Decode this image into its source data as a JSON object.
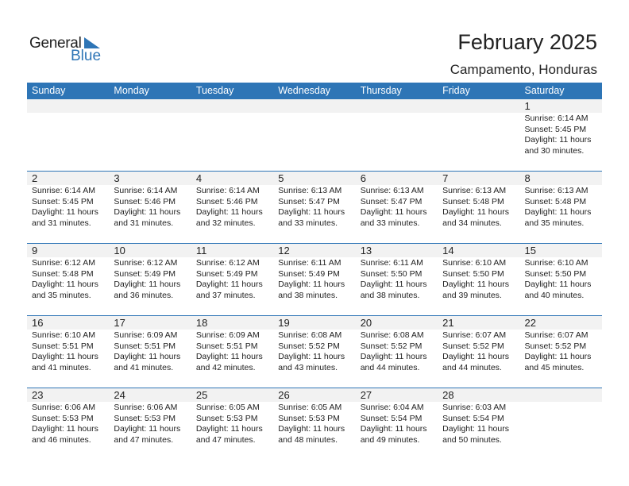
{
  "logo": {
    "line1": "General",
    "line2": "Blue"
  },
  "title": "February 2025",
  "location": "Campamento, Honduras",
  "colors": {
    "accent": "#2e75b6",
    "date_row": "#f2f2f2"
  },
  "weekdays": [
    "Sunday",
    "Monday",
    "Tuesday",
    "Wednesday",
    "Thursday",
    "Friday",
    "Saturday"
  ],
  "weeks": [
    [
      null,
      null,
      null,
      null,
      null,
      null,
      {
        "d": "1",
        "sr": "Sunrise: 6:14 AM",
        "ss": "Sunset: 5:45 PM",
        "dl": "Daylight: 11 hours",
        "m": "and 30 minutes."
      }
    ],
    [
      {
        "d": "2",
        "sr": "Sunrise: 6:14 AM",
        "ss": "Sunset: 5:45 PM",
        "dl": "Daylight: 11 hours",
        "m": "and 31 minutes."
      },
      {
        "d": "3",
        "sr": "Sunrise: 6:14 AM",
        "ss": "Sunset: 5:46 PM",
        "dl": "Daylight: 11 hours",
        "m": "and 31 minutes."
      },
      {
        "d": "4",
        "sr": "Sunrise: 6:14 AM",
        "ss": "Sunset: 5:46 PM",
        "dl": "Daylight: 11 hours",
        "m": "and 32 minutes."
      },
      {
        "d": "5",
        "sr": "Sunrise: 6:13 AM",
        "ss": "Sunset: 5:47 PM",
        "dl": "Daylight: 11 hours",
        "m": "and 33 minutes."
      },
      {
        "d": "6",
        "sr": "Sunrise: 6:13 AM",
        "ss": "Sunset: 5:47 PM",
        "dl": "Daylight: 11 hours",
        "m": "and 33 minutes."
      },
      {
        "d": "7",
        "sr": "Sunrise: 6:13 AM",
        "ss": "Sunset: 5:48 PM",
        "dl": "Daylight: 11 hours",
        "m": "and 34 minutes."
      },
      {
        "d": "8",
        "sr": "Sunrise: 6:13 AM",
        "ss": "Sunset: 5:48 PM",
        "dl": "Daylight: 11 hours",
        "m": "and 35 minutes."
      }
    ],
    [
      {
        "d": "9",
        "sr": "Sunrise: 6:12 AM",
        "ss": "Sunset: 5:48 PM",
        "dl": "Daylight: 11 hours",
        "m": "and 35 minutes."
      },
      {
        "d": "10",
        "sr": "Sunrise: 6:12 AM",
        "ss": "Sunset: 5:49 PM",
        "dl": "Daylight: 11 hours",
        "m": "and 36 minutes."
      },
      {
        "d": "11",
        "sr": "Sunrise: 6:12 AM",
        "ss": "Sunset: 5:49 PM",
        "dl": "Daylight: 11 hours",
        "m": "and 37 minutes."
      },
      {
        "d": "12",
        "sr": "Sunrise: 6:11 AM",
        "ss": "Sunset: 5:49 PM",
        "dl": "Daylight: 11 hours",
        "m": "and 38 minutes."
      },
      {
        "d": "13",
        "sr": "Sunrise: 6:11 AM",
        "ss": "Sunset: 5:50 PM",
        "dl": "Daylight: 11 hours",
        "m": "and 38 minutes."
      },
      {
        "d": "14",
        "sr": "Sunrise: 6:10 AM",
        "ss": "Sunset: 5:50 PM",
        "dl": "Daylight: 11 hours",
        "m": "and 39 minutes."
      },
      {
        "d": "15",
        "sr": "Sunrise: 6:10 AM",
        "ss": "Sunset: 5:50 PM",
        "dl": "Daylight: 11 hours",
        "m": "and 40 minutes."
      }
    ],
    [
      {
        "d": "16",
        "sr": "Sunrise: 6:10 AM",
        "ss": "Sunset: 5:51 PM",
        "dl": "Daylight: 11 hours",
        "m": "and 41 minutes."
      },
      {
        "d": "17",
        "sr": "Sunrise: 6:09 AM",
        "ss": "Sunset: 5:51 PM",
        "dl": "Daylight: 11 hours",
        "m": "and 41 minutes."
      },
      {
        "d": "18",
        "sr": "Sunrise: 6:09 AM",
        "ss": "Sunset: 5:51 PM",
        "dl": "Daylight: 11 hours",
        "m": "and 42 minutes."
      },
      {
        "d": "19",
        "sr": "Sunrise: 6:08 AM",
        "ss": "Sunset: 5:52 PM",
        "dl": "Daylight: 11 hours",
        "m": "and 43 minutes."
      },
      {
        "d": "20",
        "sr": "Sunrise: 6:08 AM",
        "ss": "Sunset: 5:52 PM",
        "dl": "Daylight: 11 hours",
        "m": "and 44 minutes."
      },
      {
        "d": "21",
        "sr": "Sunrise: 6:07 AM",
        "ss": "Sunset: 5:52 PM",
        "dl": "Daylight: 11 hours",
        "m": "and 44 minutes."
      },
      {
        "d": "22",
        "sr": "Sunrise: 6:07 AM",
        "ss": "Sunset: 5:52 PM",
        "dl": "Daylight: 11 hours",
        "m": "and 45 minutes."
      }
    ],
    [
      {
        "d": "23",
        "sr": "Sunrise: 6:06 AM",
        "ss": "Sunset: 5:53 PM",
        "dl": "Daylight: 11 hours",
        "m": "and 46 minutes."
      },
      {
        "d": "24",
        "sr": "Sunrise: 6:06 AM",
        "ss": "Sunset: 5:53 PM",
        "dl": "Daylight: 11 hours",
        "m": "and 47 minutes."
      },
      {
        "d": "25",
        "sr": "Sunrise: 6:05 AM",
        "ss": "Sunset: 5:53 PM",
        "dl": "Daylight: 11 hours",
        "m": "and 47 minutes."
      },
      {
        "d": "26",
        "sr": "Sunrise: 6:05 AM",
        "ss": "Sunset: 5:53 PM",
        "dl": "Daylight: 11 hours",
        "m": "and 48 minutes."
      },
      {
        "d": "27",
        "sr": "Sunrise: 6:04 AM",
        "ss": "Sunset: 5:54 PM",
        "dl": "Daylight: 11 hours",
        "m": "and 49 minutes."
      },
      {
        "d": "28",
        "sr": "Sunrise: 6:03 AM",
        "ss": "Sunset: 5:54 PM",
        "dl": "Daylight: 11 hours",
        "m": "and 50 minutes."
      },
      null
    ]
  ]
}
